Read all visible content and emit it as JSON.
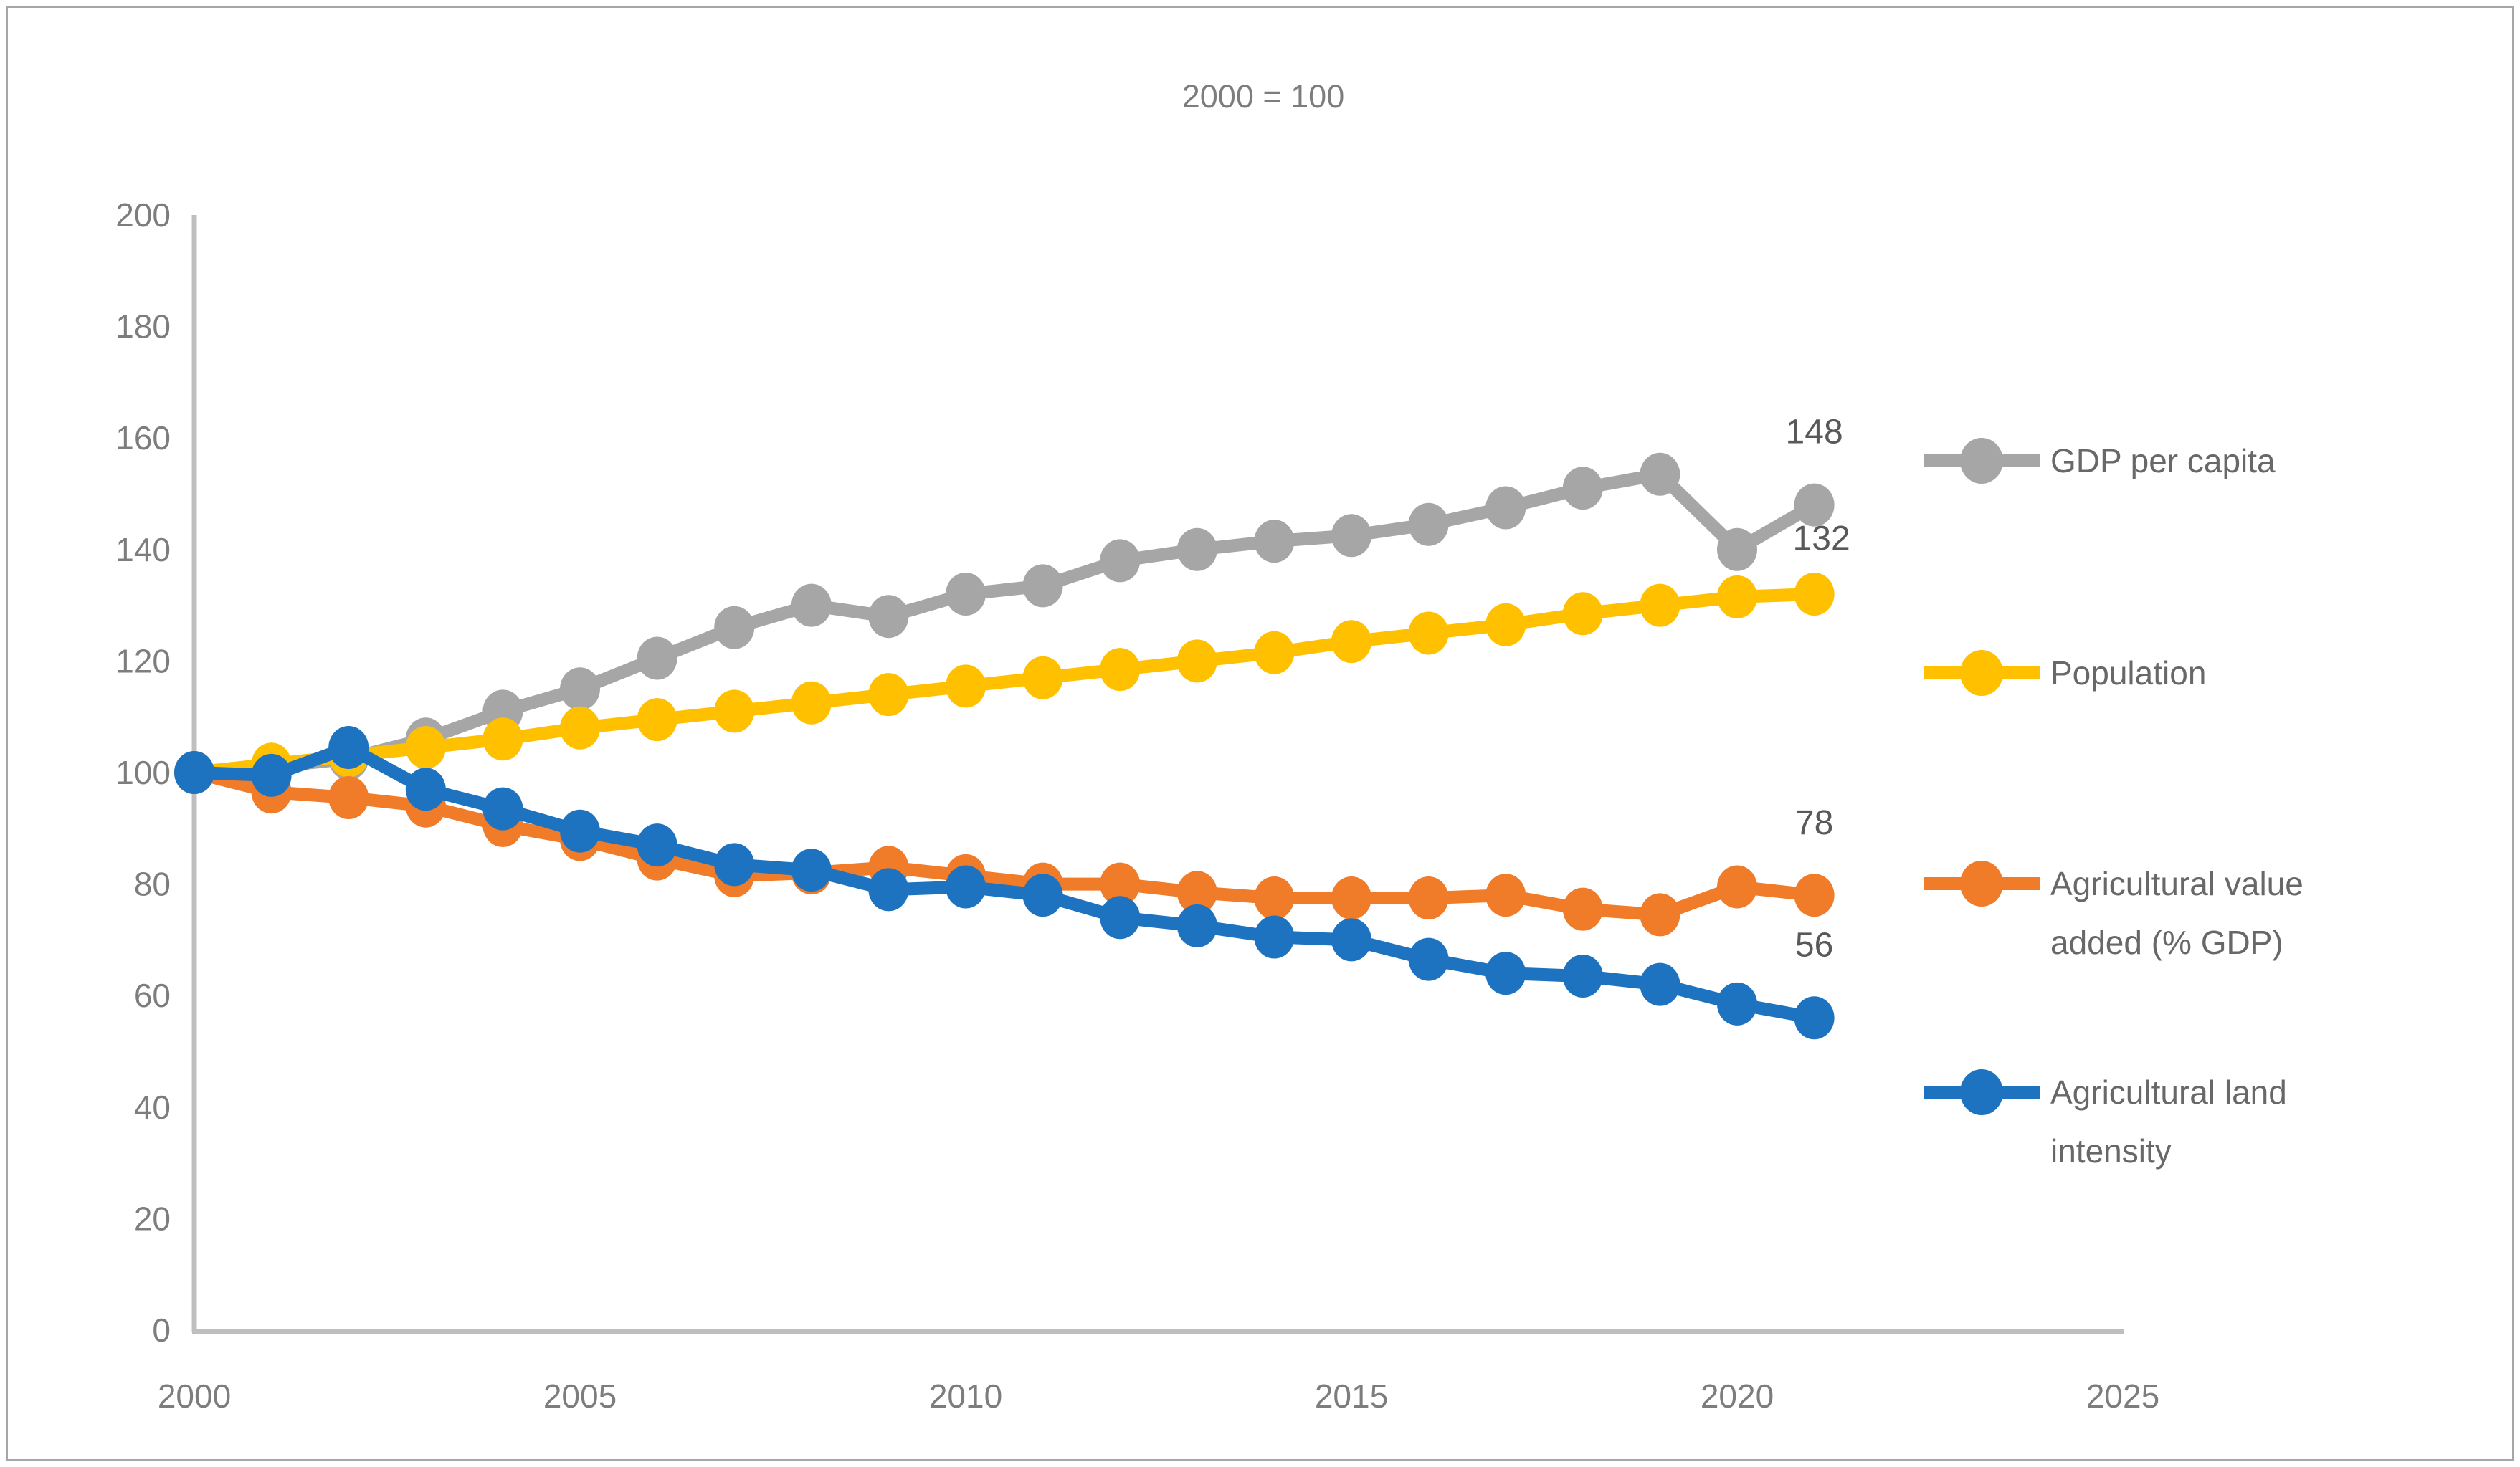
{
  "title": "2000 = 100",
  "chart_data": {
    "type": "line",
    "title": "2000 = 100",
    "x": [
      2000,
      2001,
      2002,
      2003,
      2004,
      2005,
      2006,
      2007,
      2008,
      2009,
      2010,
      2011,
      2012,
      2013,
      2014,
      2015,
      2016,
      2017,
      2018,
      2019,
      2020,
      2021
    ],
    "x_axis": {
      "min": 2000,
      "max": 2025,
      "tick_step": 5,
      "ticks": [
        "2000",
        "2005",
        "2010",
        "2015",
        "2020",
        "2025"
      ]
    },
    "y_axis": {
      "min": 0,
      "max": 200,
      "tick_step": 20,
      "ticks": [
        "0",
        "20",
        "40",
        "60",
        "80",
        "100",
        "120",
        "140",
        "160",
        "180",
        "200"
      ]
    },
    "grid": false,
    "legend_position": "right",
    "series": [
      {
        "name": "GDP per capita",
        "color": "#a6a6a6",
        "end_label": "148",
        "values": [
          100,
          101,
          102.5,
          106,
          111,
          115,
          120.5,
          126,
          130,
          128,
          132,
          133.5,
          138,
          140,
          141.5,
          142.5,
          144.5,
          147.5,
          151,
          153.5,
          140,
          148
        ]
      },
      {
        "name": "Population",
        "color": "#ffc000",
        "end_label": "132",
        "values": [
          100,
          101.5,
          103,
          104.5,
          106,
          108,
          109.5,
          111,
          112.5,
          114,
          115.5,
          117,
          118.5,
          120,
          121.5,
          123.5,
          125,
          126.5,
          128.5,
          130,
          131.5,
          132
        ]
      },
      {
        "name": "Agricultural value added (% GDP)",
        "color": "#f07b28",
        "end_label": "78",
        "values": [
          100,
          96.5,
          95.5,
          94,
          90.5,
          88,
          84.5,
          81.5,
          82,
          83,
          81.5,
          80,
          80,
          78.5,
          77.5,
          77.5,
          77.5,
          78,
          75.5,
          74.5,
          79.5,
          78
        ]
      },
      {
        "name": "Agricultural land intensity",
        "color": "#1e73c0",
        "end_label": "56",
        "values": [
          100,
          99.5,
          104.5,
          97,
          93.5,
          89.5,
          87,
          83.5,
          82.5,
          79,
          79.5,
          78,
          74,
          72.5,
          70.5,
          70,
          66.5,
          64,
          63.5,
          62,
          58.5,
          56
        ]
      }
    ]
  },
  "legend": {
    "items": [
      {
        "label": "GDP per capita",
        "lines": [
          "GDP per capita"
        ],
        "color": "#a6a6a6"
      },
      {
        "label": "Population",
        "lines": [
          "Population"
        ],
        "color": "#ffc000"
      },
      {
        "label": "Agricultural value added (% GDP)",
        "lines": [
          "Agricultural value",
          "added (% GDP)"
        ],
        "color": "#f07b28"
      },
      {
        "label": "Agricultural land intensity",
        "lines": [
          "Agricultural land",
          "intensity"
        ],
        "color": "#1e73c0"
      }
    ]
  },
  "colors": {
    "axis_line": "#bfbfbf",
    "tick_label": "#7d7d7d",
    "title": "#7d7d7d",
    "data_label": "#595959",
    "legend_text": "#686868",
    "frame_border": "#a6a6a6",
    "background": "#ffffff"
  }
}
